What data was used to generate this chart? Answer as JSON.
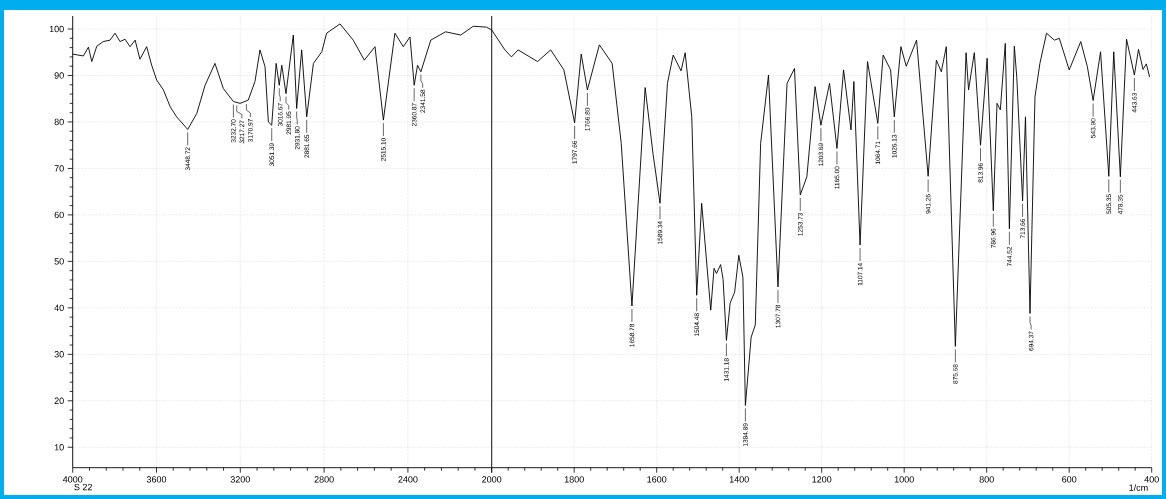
{
  "chart_data": [
    {
      "type": "line",
      "xlim": [
        4000,
        2000
      ],
      "ylim": [
        5.6,
        102.8
      ],
      "xticks": [
        4000,
        3600,
        3200,
        2800,
        2400,
        {
          "value": 2000,
          "label": null
        }
      ],
      "yticks": [
        10,
        20,
        30,
        40,
        50,
        60,
        70,
        80,
        90,
        100
      ],
      "grid": true,
      "marker": "none",
      "line_style": "solid",
      "series": [
        {
          "color": "#000000",
          "x": [
            4000,
            3949,
            3925,
            3909,
            3885,
            3854,
            3822,
            3798,
            3774,
            3750,
            3726,
            3702,
            3679,
            3647,
            3623,
            3599,
            3567,
            3535,
            3504,
            3451,
            3408,
            3368,
            3321,
            3281,
            3233,
            3201,
            3162,
            3130,
            3106,
            3082,
            3066,
            3050,
            3029,
            3014,
            3002,
            2982,
            2947,
            2931,
            2907,
            2883,
            2851,
            2811,
            2788,
            2724,
            2661,
            2608,
            2557,
            2517,
            2462,
            2422,
            2390,
            2370,
            2354,
            2338,
            2291,
            2220,
            2148,
            2088,
            2025,
            2000
          ],
          "values": [
            94.6,
            94.2,
            96.1,
            93.0,
            96.3,
            97.3,
            97.6,
            99.1,
            97.3,
            97.8,
            96.2,
            97.6,
            93.5,
            96.2,
            92.2,
            89.0,
            86.9,
            83.3,
            81.1,
            78.4,
            81.8,
            87.9,
            92.6,
            87.2,
            84.4,
            84.0,
            84.7,
            88.7,
            95.5,
            91.9,
            80.0,
            79.3,
            92.6,
            87.9,
            92.2,
            86.1,
            98.7,
            82.9,
            95.5,
            81.1,
            92.6,
            95.1,
            99.1,
            101.1,
            97.6,
            93.3,
            96.2,
            80.4,
            99.1,
            96.2,
            98.3,
            87.9,
            92.2,
            90.8,
            97.6,
            99.4,
            98.7,
            100.6,
            100.4,
            99.8
          ]
        }
      ],
      "annotations": [
        {
          "text": "3448.72",
          "x": 3451,
          "y": 78.4
        },
        {
          "text": "3232.70",
          "x": 3233,
          "y": 84.4
        },
        {
          "text": "3217.27",
          "x": 3217,
          "y": 84.2
        },
        {
          "text": "3170.97",
          "x": 3171,
          "y": 84.5
        },
        {
          "text": "3051.39",
          "x": 3050,
          "y": 79.3
        },
        {
          "text": "3016.67",
          "x": 3014,
          "y": 87.9
        },
        {
          "text": "2981.95",
          "x": 2982,
          "y": 86.1
        },
        {
          "text": "2931.80",
          "x": 2931,
          "y": 82.9
        },
        {
          "text": "2881.65",
          "x": 2883,
          "y": 81.1
        },
        {
          "text": "2515.10",
          "x": 2517,
          "y": 80.4
        },
        {
          "text": "2360.87",
          "x": 2370,
          "y": 87.9
        },
        {
          "text": "2341.58",
          "x": 2338,
          "y": 90.8
        },
        "S 22"
      ]
    },
    {
      "type": "line",
      "xlim": [
        2000,
        400
      ],
      "ylim": [
        5.6,
        102.8
      ],
      "xticks": [
        2000,
        1800,
        1600,
        1400,
        1200,
        1000,
        800,
        600,
        400
      ],
      "yticks": [
        10,
        20,
        30,
        40,
        50,
        60,
        70,
        80,
        90,
        100
      ],
      "grid": true,
      "marker": "none",
      "line_style": "solid",
      "tick_labels": "x",
      "xlabel": "1/cm",
      "series": [
        {
          "color": "#000000",
          "x": [
            2000,
            1968,
            1952,
            1936,
            1889,
            1857,
            1825,
            1799,
            1783,
            1768,
            1739,
            1708,
            1686,
            1660,
            1628,
            1609,
            1592,
            1574,
            1560,
            1541,
            1531,
            1515,
            1503,
            1491,
            1469,
            1461,
            1455,
            1445,
            1439,
            1431,
            1422,
            1411,
            1401,
            1391,
            1385,
            1371,
            1361,
            1348,
            1329,
            1306,
            1284,
            1266,
            1252,
            1236,
            1216,
            1202,
            1181,
            1163,
            1147,
            1129,
            1122,
            1107,
            1089,
            1064,
            1051,
            1033,
            1024,
            1008,
            995,
            970,
            942,
            922,
            910,
            898,
            876,
            850,
            844,
            830,
            815,
            799,
            784,
            775,
            767,
            755,
            745,
            733,
            727,
            713,
            706,
            695,
            683,
            671,
            655,
            636,
            624,
            600,
            572,
            556,
            542,
            524,
            504,
            492,
            476,
            461,
            442,
            432,
            421,
            413,
            405
          ],
          "values": [
            99.8,
            95.5,
            94.0,
            95.5,
            93.0,
            95.5,
            91.2,
            79.8,
            94.6,
            86.9,
            96.6,
            92.6,
            75.4,
            40.4,
            87.4,
            73.2,
            62.5,
            88.3,
            94.4,
            91.0,
            94.9,
            81.1,
            42.7,
            62.5,
            39.5,
            48.5,
            47.4,
            49.3,
            46.1,
            33.0,
            41.0,
            43.4,
            51.3,
            46.6,
            19.0,
            33.7,
            36.3,
            75.4,
            90.1,
            44.5,
            88.3,
            91.5,
            64.3,
            68.2,
            87.6,
            79.3,
            88.3,
            74.3,
            91.2,
            78.3,
            88.7,
            53.5,
            93.0,
            79.7,
            94.4,
            91.2,
            81.1,
            96.2,
            92.0,
            97.6,
            68.3,
            93.3,
            90.8,
            96.2,
            31.7,
            94.9,
            86.9,
            94.9,
            75.0,
            93.7,
            60.9,
            84.0,
            82.6,
            96.9,
            57.0,
            96.3,
            89.5,
            63.0,
            81.1,
            38.8,
            85.4,
            92.6,
            99.1,
            97.6,
            98.0,
            91.2,
            97.3,
            91.9,
            84.6,
            95.1,
            68.3,
            95.1,
            68.2,
            97.8,
            90.1,
            95.6,
            91.3,
            92.5,
            89.7
          ]
        }
      ],
      "annotations": [
        {
          "text": "1797.66",
          "x": 1799,
          "y": 79.8
        },
        {
          "text": "1766.80",
          "x": 1768,
          "y": 86.9
        },
        {
          "text": "1658.78",
          "x": 1660,
          "y": 40.4
        },
        {
          "text": "1589.34",
          "x": 1592,
          "y": 62.5
        },
        {
          "text": "1504.48",
          "x": 1503,
          "y": 42.7
        },
        {
          "text": "1431.18",
          "x": 1431,
          "y": 33.0
        },
        {
          "text": "1384.89",
          "x": 1385,
          "y": 19.0
        },
        {
          "text": "1307.78",
          "x": 1306,
          "y": 44.5
        },
        {
          "text": "1253.73",
          "x": 1252,
          "y": 64.3
        },
        {
          "text": "1203.69",
          "x": 1202,
          "y": 79.3
        },
        {
          "text": "1165.00",
          "x": 1163,
          "y": 74.3
        },
        {
          "text": "1107.14",
          "x": 1107,
          "y": 53.5
        },
        {
          "text": "1064.71",
          "x": 1064,
          "y": 79.7
        },
        {
          "text": "1026.13",
          "x": 1024,
          "y": 81.1
        },
        {
          "text": "941.26",
          "x": 942,
          "y": 68.3
        },
        {
          "text": "875.68",
          "x": 876,
          "y": 31.7
        },
        {
          "text": "813.96",
          "x": 815,
          "y": 75.0
        },
        {
          "text": "786.96",
          "x": 784,
          "y": 60.9
        },
        {
          "text": "744.52",
          "x": 745,
          "y": 57.0
        },
        {
          "text": "713.66",
          "x": 713,
          "y": 63.0
        },
        {
          "text": "694.37",
          "x": 695,
          "y": 38.8
        },
        {
          "text": "543.90",
          "x": 542,
          "y": 84.6
        },
        {
          "text": "505.35",
          "x": 504,
          "y": 68.3
        },
        {
          "text": "478.35",
          "x": 476,
          "y": 68.2
        },
        {
          "text": "443.63",
          "x": 442,
          "y": 90.1
        }
      ]
    }
  ]
}
